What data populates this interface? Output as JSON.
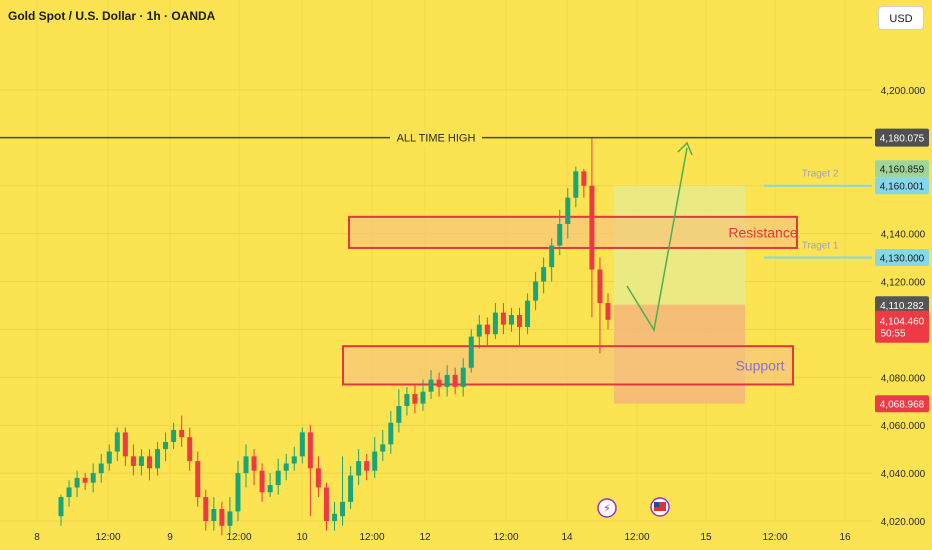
{
  "header": {
    "title": "Gold Spot / U.S. Dollar · 1h · OANDA",
    "currency": "USD"
  },
  "colors": {
    "background": "#fbe351",
    "up_candle": "#1aa47a",
    "down_candle": "#ee3a45",
    "box_red": "#e8363f",
    "zone_fill": "#f6c57a",
    "target_zone": "#e7ea8a",
    "stop_zone": "#f4b87a",
    "arrow": "#4caf50",
    "target_line": "#7fd8ec",
    "ath_line": "#454545"
  },
  "chart_data": {
    "type": "candlestick",
    "y_axis_ticks": [
      "4,200.000",
      "4,140.000",
      "4,120.000",
      "4,080.000",
      "4,060.000",
      "4,040.000",
      "4,020.000"
    ],
    "x_axis_ticks": [
      "8",
      "12:00",
      "9",
      "12:00",
      "10",
      "12:00",
      "12",
      "12:00",
      "14",
      "12:00",
      "15",
      "12:00",
      "16"
    ],
    "price_labels": {
      "ath": "4,180.075",
      "target2_a": "4,160.859",
      "target2_b": "4,160.001",
      "target1": "4,130.000",
      "prev": "4,110.282",
      "current": "4,104.460",
      "countdown": "50:55",
      "stop": "4,068.968"
    },
    "annotations": {
      "ath": "ALL TIME HIGH",
      "resistance": "Resistance",
      "support": "Support",
      "target2": "Traget 2",
      "target1": "Traget 1"
    },
    "candles": [
      [
        4022,
        4030,
        4018,
        4031
      ],
      [
        4030,
        4034,
        4026,
        4037
      ],
      [
        4034,
        4038,
        4030,
        4041
      ],
      [
        4038,
        4036,
        4033,
        4040
      ],
      [
        4036,
        4040,
        4032,
        4044
      ],
      [
        4040,
        4044,
        4036,
        4048
      ],
      [
        4044,
        4049,
        4041,
        4052
      ],
      [
        4049,
        4057,
        4045,
        4059
      ],
      [
        4057,
        4047,
        4043,
        4059
      ],
      [
        4047,
        4043,
        4039,
        4052
      ],
      [
        4043,
        4047,
        4039,
        4050
      ],
      [
        4047,
        4042,
        4037,
        4050
      ],
      [
        4042,
        4050,
        4039,
        4053
      ],
      [
        4050,
        4053,
        4045,
        4057
      ],
      [
        4053,
        4058,
        4050,
        4061
      ],
      [
        4058,
        4055,
        4051,
        4064
      ],
      [
        4055,
        4045,
        4041,
        4059
      ],
      [
        4045,
        4030,
        4026,
        4049
      ],
      [
        4030,
        4020,
        4016,
        4033
      ],
      [
        4020,
        4025,
        4016,
        4030
      ],
      [
        4025,
        4018,
        4014,
        4028
      ],
      [
        4018,
        4024,
        4014,
        4030
      ],
      [
        4024,
        4040,
        4020,
        4045
      ],
      [
        4040,
        4047,
        4034,
        4052
      ],
      [
        4047,
        4041,
        4035,
        4050
      ],
      [
        4041,
        4032,
        4028,
        4044
      ],
      [
        4032,
        4035,
        4030,
        4040
      ],
      [
        4035,
        4041,
        4031,
        4046
      ],
      [
        4041,
        4044,
        4037,
        4048
      ],
      [
        4044,
        4047,
        4041,
        4051
      ],
      [
        4047,
        4057,
        4044,
        4059
      ],
      [
        4057,
        4042,
        4022,
        4060
      ],
      [
        4042,
        4034,
        4030,
        4047
      ],
      [
        4034,
        4020,
        4016,
        4036
      ],
      [
        4020,
        4023,
        4016,
        4028
      ],
      [
        4022,
        4028,
        4018,
        4047
      ],
      [
        4028,
        4039,
        4025,
        4043
      ],
      [
        4039,
        4045,
        4035,
        4050
      ],
      [
        4045,
        4041,
        4037,
        4048
      ],
      [
        4041,
        4049,
        4038,
        4055
      ],
      [
        4049,
        4052,
        4045,
        4058
      ],
      [
        4052,
        4061,
        4048,
        4066
      ],
      [
        4061,
        4068,
        4057,
        4075
      ],
      [
        4068,
        4073,
        4064,
        4076
      ],
      [
        4073,
        4069,
        4065,
        4077
      ],
      [
        4069,
        4074,
        4066,
        4079
      ],
      [
        4074,
        4079,
        4071,
        4083
      ],
      [
        4079,
        4076,
        4072,
        4082
      ],
      [
        4076,
        4081,
        4072,
        4085
      ],
      [
        4081,
        4076,
        4073,
        4084
      ],
      [
        4076,
        4084,
        4072,
        4088
      ],
      [
        4084,
        4097,
        4082,
        4100
      ],
      [
        4097,
        4102,
        4092,
        4106
      ],
      [
        4102,
        4098,
        4093,
        4105
      ],
      [
        4098,
        4107,
        4096,
        4111
      ],
      [
        4107,
        4102,
        4098,
        4111
      ],
      [
        4102,
        4106,
        4099,
        4109
      ],
      [
        4106,
        4101,
        4093,
        4109
      ],
      [
        4101,
        4112,
        4098,
        4115
      ],
      [
        4112,
        4120,
        4108,
        4124
      ],
      [
        4120,
        4126,
        4115,
        4130
      ],
      [
        4126,
        4135,
        4120,
        4138
      ],
      [
        4135,
        4144,
        4131,
        4150
      ],
      [
        4144,
        4155,
        4138,
        4159
      ],
      [
        4155,
        4166,
        4151,
        4168
      ],
      [
        4166,
        4160,
        4155,
        4167
      ],
      [
        4160,
        4125,
        4105,
        4180
      ],
      [
        4125,
        4111,
        4090,
        4130
      ],
      [
        4111,
        4104,
        4100,
        4115
      ]
    ]
  }
}
